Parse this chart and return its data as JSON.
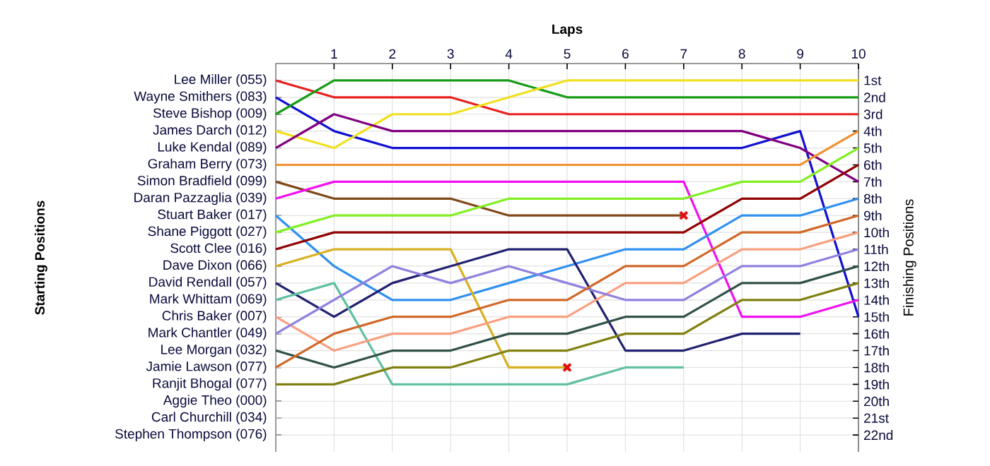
{
  "chart_data": {
    "type": "line",
    "xlabel": "Laps",
    "y2label": "Finishing Positions",
    "x": [
      0,
      1,
      2,
      3,
      4,
      5,
      6,
      7,
      8,
      9,
      10
    ],
    "xlim": [
      0,
      10
    ],
    "xticks": [
      1,
      2,
      3,
      4,
      5,
      6,
      7,
      8,
      9,
      10
    ],
    "annotations": [
      "Lee Miller (055)",
      "Wayne Smithers (083)",
      "Steve Bishop (009)",
      "James Darch (012)",
      "Luke Kendal (089)",
      "Graham Berry (073)",
      "Simon Bradfield (099)",
      "Daran Pazzaglia (039)",
      "Stuart Baker (017)",
      "Shane Piggott (027)",
      "Scott Clee (016)",
      "Dave Dixon (066)",
      "David Rendall (057)",
      "Mark Whittam (069)",
      "Chris Baker (007)",
      "Mark Chantler (049)",
      "Lee Morgan (032)",
      "Jamie Lawson (077)",
      "Ranjit Bhogal (077)",
      "Aggie Theo (000)",
      "Carl Churchill (034)",
      "Stephen Thompson (076)",
      "Starting Positions"
    ],
    "y2lim": [
      23,
      0
    ],
    "y2ticks": [
      {
        "value": 1,
        "label": "1st"
      },
      {
        "value": 2,
        "label": "2nd"
      },
      {
        "value": 3,
        "label": "3rd"
      },
      {
        "value": 4,
        "label": "4th"
      },
      {
        "value": 5,
        "label": "5th"
      },
      {
        "value": 6,
        "label": "6th"
      },
      {
        "value": 7,
        "label": "7th"
      },
      {
        "value": 8,
        "label": "8th"
      },
      {
        "value": 9,
        "label": "9th"
      },
      {
        "value": 10,
        "label": "10th"
      },
      {
        "value": 11,
        "label": "11th"
      },
      {
        "value": 12,
        "label": "12th"
      },
      {
        "value": 13,
        "label": "13th"
      },
      {
        "value": 14,
        "label": "14th"
      },
      {
        "value": 15,
        "label": "15th"
      },
      {
        "value": 16,
        "label": "16th"
      },
      {
        "value": 17,
        "label": "17th"
      },
      {
        "value": 18,
        "label": "18th"
      },
      {
        "value": 19,
        "label": "19th"
      },
      {
        "value": 20,
        "label": "20th"
      },
      {
        "value": 21,
        "label": "21st"
      },
      {
        "value": 22,
        "label": "22nd"
      }
    ],
    "grid": true,
    "marker": "none",
    "series": [
      {
        "axis": "y2",
        "color": "#e8201e",
        "values": [
          1,
          2,
          2,
          2,
          3,
          3,
          3,
          3,
          3,
          3,
          3
        ]
      },
      {
        "axis": "y2",
        "color": "#1010d0",
        "values": [
          2,
          4,
          5,
          5,
          5,
          5,
          5,
          5,
          5,
          4,
          15
        ]
      },
      {
        "axis": "y2",
        "color": "#169c16",
        "values": [
          3,
          1,
          1,
          1,
          1,
          2,
          2,
          2,
          2,
          2,
          2
        ]
      },
      {
        "axis": "y2",
        "color": "#f0e020",
        "values": [
          4,
          5,
          3,
          3,
          2,
          1,
          1,
          1,
          1,
          1,
          1
        ]
      },
      {
        "axis": "y2",
        "color": "#800080",
        "values": [
          5,
          3,
          4,
          4,
          4,
          4,
          4,
          4,
          4,
          5,
          7
        ]
      },
      {
        "axis": "y2",
        "color": "#f09030",
        "values": [
          6,
          6,
          6,
          6,
          6,
          6,
          6,
          6,
          6,
          6,
          4
        ]
      },
      {
        "axis": "y2",
        "color": "#804818",
        "values": [
          7,
          8,
          8,
          8,
          9,
          9,
          9,
          9,
          null,
          null,
          null
        ]
      },
      {
        "axis": "y2",
        "color": "#f010f0",
        "values": [
          8,
          7,
          7,
          7,
          7,
          7,
          7,
          7,
          15,
          15,
          14
        ]
      },
      {
        "axis": "y2",
        "color": "#3090f0",
        "values": [
          9,
          12,
          14,
          14,
          13,
          12,
          11,
          11,
          9,
          9,
          8
        ]
      },
      {
        "axis": "y2",
        "color": "#80f020",
        "values": [
          10,
          9,
          9,
          9,
          8,
          8,
          8,
          8,
          7,
          7,
          5
        ]
      },
      {
        "axis": "y2",
        "color": "#900000",
        "values": [
          11,
          10,
          10,
          10,
          10,
          10,
          10,
          10,
          8,
          8,
          6
        ]
      },
      {
        "axis": "y2",
        "color": "#d8b020",
        "values": [
          12,
          11,
          11,
          11,
          18,
          18,
          null,
          null,
          null,
          null,
          null
        ]
      },
      {
        "axis": "y2",
        "color": "#202070",
        "values": [
          13,
          15,
          13,
          12,
          11,
          11,
          17,
          17,
          16,
          16,
          null
        ]
      },
      {
        "axis": "y2",
        "color": "#60c0a0",
        "values": [
          14,
          13,
          19,
          19,
          19,
          19,
          18,
          18,
          null,
          null,
          null
        ]
      },
      {
        "axis": "y2",
        "color": "#f8a080",
        "values": [
          15,
          17,
          16,
          16,
          15,
          15,
          13,
          13,
          11,
          11,
          10
        ]
      },
      {
        "axis": "y2",
        "color": "#9080e0",
        "values": [
          16,
          14,
          12,
          13,
          12,
          13,
          14,
          14,
          12,
          12,
          11
        ]
      },
      {
        "axis": "y2",
        "color": "#305048",
        "values": [
          17,
          18,
          17,
          17,
          16,
          16,
          15,
          15,
          13,
          13,
          12
        ]
      },
      {
        "axis": "y2",
        "color": "#d06828",
        "values": [
          18,
          16,
          15,
          15,
          14,
          14,
          12,
          12,
          10,
          10,
          9
        ]
      },
      {
        "axis": "y2",
        "color": "#808010",
        "values": [
          19,
          19,
          18,
          18,
          17,
          17,
          16,
          16,
          14,
          14,
          13
        ]
      },
      {
        "axis": "y2",
        "type": "scatter",
        "marker": "cross",
        "color": "#e01010",
        "x": [
          5,
          7
        ],
        "values": [
          18,
          9
        ]
      }
    ]
  }
}
